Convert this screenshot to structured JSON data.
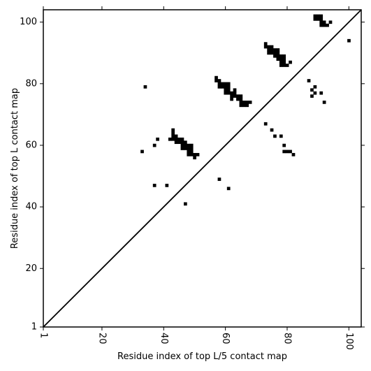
{
  "chart_data": {
    "type": "scatter",
    "title": "",
    "xlabel": "Residue index of top L/5 contact map",
    "ylabel": "Residue index of top L contact map",
    "xlim": [
      1,
      104
    ],
    "ylim": [
      1,
      104
    ],
    "x_ticks": [
      1,
      20,
      40,
      60,
      80,
      100
    ],
    "y_ticks": [
      1,
      20,
      40,
      60,
      80,
      100
    ],
    "x_tick_labels": [
      "1",
      "20",
      "40",
      "60",
      "80",
      "100"
    ],
    "y_tick_labels": [
      "1",
      "20",
      "40",
      "60",
      "80",
      "100"
    ],
    "x_tick_rotation": -90,
    "grid": false,
    "legend": "none",
    "marker": "square",
    "marker_color": "#000000",
    "diagonal_line": {
      "from": [
        1,
        1
      ],
      "to": [
        104,
        104
      ],
      "color": "#000000"
    },
    "series": [
      {
        "points": [
          [
            33,
            58
          ],
          [
            34,
            79
          ],
          [
            37,
            47
          ],
          [
            37,
            60
          ],
          [
            38,
            62
          ],
          [
            41,
            47
          ],
          [
            47,
            41
          ],
          [
            58,
            49
          ],
          [
            61,
            46
          ],
          [
            42,
            62
          ],
          [
            43,
            62
          ],
          [
            43,
            63
          ],
          [
            43,
            64
          ],
          [
            43,
            65
          ],
          [
            44,
            61
          ],
          [
            44,
            62
          ],
          [
            44,
            63
          ],
          [
            45,
            61
          ],
          [
            45,
            62
          ],
          [
            46,
            59
          ],
          [
            46,
            60
          ],
          [
            46,
            61
          ],
          [
            46,
            62
          ],
          [
            47,
            59
          ],
          [
            47,
            60
          ],
          [
            47,
            61
          ],
          [
            48,
            57
          ],
          [
            48,
            58
          ],
          [
            48,
            59
          ],
          [
            48,
            60
          ],
          [
            49,
            57
          ],
          [
            49,
            58
          ],
          [
            49,
            59
          ],
          [
            49,
            60
          ],
          [
            50,
            56
          ],
          [
            50,
            57
          ],
          [
            51,
            57
          ],
          [
            57,
            81
          ],
          [
            57,
            82
          ],
          [
            58,
            79
          ],
          [
            58,
            80
          ],
          [
            58,
            81
          ],
          [
            59,
            79
          ],
          [
            59,
            80
          ],
          [
            60,
            77
          ],
          [
            60,
            78
          ],
          [
            60,
            79
          ],
          [
            60,
            80
          ],
          [
            61,
            77
          ],
          [
            61,
            78
          ],
          [
            61,
            79
          ],
          [
            61,
            80
          ],
          [
            62,
            75
          ],
          [
            62,
            76
          ],
          [
            62,
            77
          ],
          [
            63,
            76
          ],
          [
            63,
            77
          ],
          [
            63,
            78
          ],
          [
            64,
            75
          ],
          [
            64,
            76
          ],
          [
            65,
            73
          ],
          [
            65,
            74
          ],
          [
            65,
            75
          ],
          [
            65,
            76
          ],
          [
            66,
            73
          ],
          [
            66,
            74
          ],
          [
            67,
            73
          ],
          [
            67,
            74
          ],
          [
            68,
            74
          ],
          [
            73,
            67
          ],
          [
            73,
            92
          ],
          [
            73,
            93
          ],
          [
            74,
            90
          ],
          [
            74,
            91
          ],
          [
            74,
            92
          ],
          [
            75,
            65
          ],
          [
            75,
            90
          ],
          [
            75,
            91
          ],
          [
            75,
            92
          ],
          [
            76,
            63
          ],
          [
            76,
            89
          ],
          [
            76,
            90
          ],
          [
            76,
            91
          ],
          [
            77,
            88
          ],
          [
            77,
            89
          ],
          [
            77,
            90
          ],
          [
            77,
            91
          ],
          [
            78,
            63
          ],
          [
            78,
            86
          ],
          [
            78,
            87
          ],
          [
            78,
            88
          ],
          [
            78,
            89
          ],
          [
            79,
            60
          ],
          [
            79,
            58
          ],
          [
            79,
            86
          ],
          [
            79,
            87
          ],
          [
            79,
            88
          ],
          [
            79,
            89
          ],
          [
            80,
            58
          ],
          [
            80,
            86
          ],
          [
            81,
            58
          ],
          [
            81,
            87
          ],
          [
            82,
            57
          ],
          [
            87,
            81
          ],
          [
            88,
            76
          ],
          [
            88,
            78
          ],
          [
            89,
            77
          ],
          [
            89,
            79
          ],
          [
            91,
            77
          ],
          [
            92,
            74
          ],
          [
            89,
            101
          ],
          [
            89,
            102
          ],
          [
            90,
            101
          ],
          [
            90,
            102
          ],
          [
            91,
            99
          ],
          [
            91,
            100
          ],
          [
            91,
            101
          ],
          [
            91,
            102
          ],
          [
            92,
            99
          ],
          [
            92,
            100
          ],
          [
            93,
            99
          ],
          [
            94,
            100
          ],
          [
            100,
            94
          ]
        ]
      }
    ]
  }
}
